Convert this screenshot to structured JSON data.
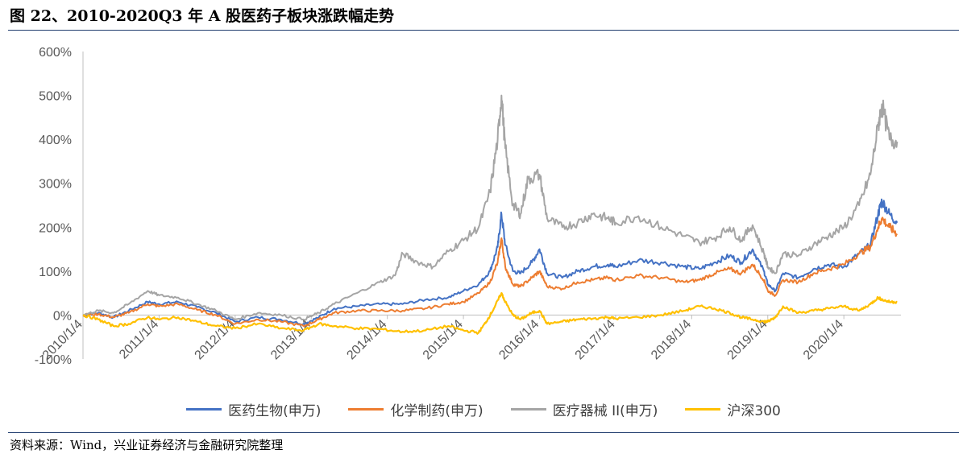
{
  "title": "图 22、2010-2020Q3 年 A 股医药子板块涨跌幅走势",
  "source": "资料来源：Wind，兴业证券经济与金融研究院整理",
  "chart_data": {
    "type": "line",
    "y_ticks": [
      "600%",
      "500%",
      "400%",
      "300%",
      "200%",
      "100%",
      "0%",
      "-100%"
    ],
    "ylim": [
      -100,
      600
    ],
    "y_unit": "%",
    "x_ticks": [
      "2010/1/4",
      "2011/1/4",
      "2012/1/4",
      "2013/1/4",
      "2014/1/4",
      "2015/1/4",
      "2016/1/4",
      "2017/1/4",
      "2018/1/4",
      "2019/1/4",
      "2020/1/4"
    ],
    "x_tick_years": [
      2010.0,
      2011.0,
      2012.0,
      2013.0,
      2014.0,
      2015.0,
      2016.0,
      2017.0,
      2018.0,
      2019.0,
      2020.0
    ],
    "xlim": [
      2010.0,
      2020.75
    ],
    "grid": false,
    "legend_position": "bottom",
    "series": [
      {
        "name": "医药生物(申万)",
        "color": "#4472c4",
        "points": [
          [
            2010.0,
            0
          ],
          [
            2010.2,
            5
          ],
          [
            2010.4,
            -5
          ],
          [
            2010.6,
            10
          ],
          [
            2010.85,
            30
          ],
          [
            2011.0,
            25
          ],
          [
            2011.25,
            30
          ],
          [
            2011.5,
            18
          ],
          [
            2011.75,
            5
          ],
          [
            2012.0,
            -15
          ],
          [
            2012.3,
            -5
          ],
          [
            2012.6,
            -10
          ],
          [
            2012.9,
            -20
          ],
          [
            2013.1,
            -5
          ],
          [
            2013.3,
            15
          ],
          [
            2013.6,
            20
          ],
          [
            2013.9,
            25
          ],
          [
            2014.2,
            25
          ],
          [
            2014.5,
            35
          ],
          [
            2014.8,
            40
          ],
          [
            2015.0,
            55
          ],
          [
            2015.2,
            70
          ],
          [
            2015.35,
            100
          ],
          [
            2015.45,
            155
          ],
          [
            2015.5,
            230
          ],
          [
            2015.55,
            160
          ],
          [
            2015.65,
            100
          ],
          [
            2015.75,
            95
          ],
          [
            2015.9,
            120
          ],
          [
            2016.0,
            150
          ],
          [
            2016.1,
            95
          ],
          [
            2016.3,
            85
          ],
          [
            2016.5,
            100
          ],
          [
            2016.7,
            110
          ],
          [
            2016.9,
            115
          ],
          [
            2017.0,
            110
          ],
          [
            2017.3,
            125
          ],
          [
            2017.6,
            120
          ],
          [
            2017.9,
            110
          ],
          [
            2018.1,
            105
          ],
          [
            2018.3,
            120
          ],
          [
            2018.5,
            135
          ],
          [
            2018.65,
            120
          ],
          [
            2018.8,
            150
          ],
          [
            2018.95,
            100
          ],
          [
            2019.0,
            70
          ],
          [
            2019.1,
            55
          ],
          [
            2019.2,
            95
          ],
          [
            2019.4,
            85
          ],
          [
            2019.6,
            105
          ],
          [
            2019.8,
            115
          ],
          [
            2020.0,
            110
          ],
          [
            2020.2,
            140
          ],
          [
            2020.35,
            160
          ],
          [
            2020.45,
            230
          ],
          [
            2020.5,
            260
          ],
          [
            2020.6,
            230
          ],
          [
            2020.7,
            210
          ]
        ]
      },
      {
        "name": "化学制药(申万)",
        "color": "#ed7d31",
        "points": [
          [
            2010.0,
            0
          ],
          [
            2010.2,
            2
          ],
          [
            2010.4,
            -5
          ],
          [
            2010.6,
            5
          ],
          [
            2010.85,
            25
          ],
          [
            2011.0,
            20
          ],
          [
            2011.25,
            25
          ],
          [
            2011.5,
            12
          ],
          [
            2011.75,
            0
          ],
          [
            2012.0,
            -20
          ],
          [
            2012.3,
            -10
          ],
          [
            2012.6,
            -15
          ],
          [
            2012.9,
            -25
          ],
          [
            2013.1,
            -10
          ],
          [
            2013.3,
            5
          ],
          [
            2013.6,
            10
          ],
          [
            2013.9,
            10
          ],
          [
            2014.2,
            10
          ],
          [
            2014.5,
            15
          ],
          [
            2014.8,
            25
          ],
          [
            2015.0,
            30
          ],
          [
            2015.2,
            50
          ],
          [
            2015.35,
            75
          ],
          [
            2015.45,
            120
          ],
          [
            2015.5,
            175
          ],
          [
            2015.55,
            110
          ],
          [
            2015.65,
            70
          ],
          [
            2015.75,
            65
          ],
          [
            2015.9,
            85
          ],
          [
            2016.0,
            100
          ],
          [
            2016.1,
            65
          ],
          [
            2016.3,
            60
          ],
          [
            2016.5,
            75
          ],
          [
            2016.7,
            80
          ],
          [
            2016.9,
            85
          ],
          [
            2017.0,
            80
          ],
          [
            2017.3,
            90
          ],
          [
            2017.6,
            85
          ],
          [
            2017.9,
            75
          ],
          [
            2018.1,
            80
          ],
          [
            2018.3,
            95
          ],
          [
            2018.5,
            105
          ],
          [
            2018.65,
            95
          ],
          [
            2018.8,
            115
          ],
          [
            2018.95,
            80
          ],
          [
            2019.0,
            55
          ],
          [
            2019.1,
            45
          ],
          [
            2019.2,
            80
          ],
          [
            2019.4,
            75
          ],
          [
            2019.6,
            95
          ],
          [
            2019.8,
            105
          ],
          [
            2020.0,
            115
          ],
          [
            2020.2,
            140
          ],
          [
            2020.35,
            155
          ],
          [
            2020.45,
            200
          ],
          [
            2020.5,
            220
          ],
          [
            2020.6,
            200
          ],
          [
            2020.7,
            185
          ]
        ]
      },
      {
        "name": "医疗器械 II(申万)",
        "color": "#a5a5a5",
        "points": [
          [
            2010.0,
            0
          ],
          [
            2010.2,
            10
          ],
          [
            2010.4,
            5
          ],
          [
            2010.6,
            25
          ],
          [
            2010.85,
            55
          ],
          [
            2011.0,
            45
          ],
          [
            2011.25,
            40
          ],
          [
            2011.5,
            25
          ],
          [
            2011.75,
            10
          ],
          [
            2012.0,
            -10
          ],
          [
            2012.3,
            5
          ],
          [
            2012.6,
            0
          ],
          [
            2012.9,
            -10
          ],
          [
            2013.1,
            5
          ],
          [
            2013.3,
            25
          ],
          [
            2013.6,
            50
          ],
          [
            2013.9,
            75
          ],
          [
            2014.1,
            90
          ],
          [
            2014.2,
            140
          ],
          [
            2014.4,
            120
          ],
          [
            2014.6,
            110
          ],
          [
            2014.8,
            145
          ],
          [
            2015.0,
            170
          ],
          [
            2015.2,
            200
          ],
          [
            2015.35,
            280
          ],
          [
            2015.45,
            400
          ],
          [
            2015.5,
            500
          ],
          [
            2015.55,
            380
          ],
          [
            2015.65,
            250
          ],
          [
            2015.75,
            230
          ],
          [
            2015.85,
            310
          ],
          [
            2016.0,
            320
          ],
          [
            2016.1,
            220
          ],
          [
            2016.3,
            200
          ],
          [
            2016.5,
            210
          ],
          [
            2016.7,
            230
          ],
          [
            2016.9,
            220
          ],
          [
            2017.0,
            210
          ],
          [
            2017.3,
            225
          ],
          [
            2017.6,
            200
          ],
          [
            2017.9,
            180
          ],
          [
            2018.1,
            165
          ],
          [
            2018.3,
            175
          ],
          [
            2018.5,
            200
          ],
          [
            2018.65,
            170
          ],
          [
            2018.8,
            205
          ],
          [
            2018.95,
            140
          ],
          [
            2019.0,
            110
          ],
          [
            2019.1,
            95
          ],
          [
            2019.2,
            140
          ],
          [
            2019.4,
            135
          ],
          [
            2019.6,
            160
          ],
          [
            2019.8,
            180
          ],
          [
            2020.0,
            200
          ],
          [
            2020.2,
            250
          ],
          [
            2020.35,
            320
          ],
          [
            2020.45,
            430
          ],
          [
            2020.5,
            480
          ],
          [
            2020.6,
            400
          ],
          [
            2020.7,
            395
          ]
        ]
      },
      {
        "name": "沪深300",
        "color": "#ffc000",
        "points": [
          [
            2010.0,
            0
          ],
          [
            2010.2,
            -10
          ],
          [
            2010.4,
            -25
          ],
          [
            2010.6,
            -20
          ],
          [
            2010.85,
            -5
          ],
          [
            2011.0,
            -10
          ],
          [
            2011.25,
            -5
          ],
          [
            2011.5,
            -15
          ],
          [
            2011.75,
            -25
          ],
          [
            2012.0,
            -30
          ],
          [
            2012.3,
            -20
          ],
          [
            2012.6,
            -30
          ],
          [
            2012.9,
            -35
          ],
          [
            2013.1,
            -20
          ],
          [
            2013.3,
            -25
          ],
          [
            2013.6,
            -30
          ],
          [
            2013.9,
            -32
          ],
          [
            2014.2,
            -38
          ],
          [
            2014.5,
            -35
          ],
          [
            2014.8,
            -25
          ],
          [
            2015.0,
            -35
          ],
          [
            2015.2,
            -40
          ],
          [
            2015.3,
            -15
          ],
          [
            2015.4,
            15
          ],
          [
            2015.5,
            50
          ],
          [
            2015.55,
            30
          ],
          [
            2015.65,
            0
          ],
          [
            2015.75,
            -10
          ],
          [
            2015.9,
            5
          ],
          [
            2016.0,
            10
          ],
          [
            2016.1,
            -20
          ],
          [
            2016.3,
            -15
          ],
          [
            2016.5,
            -10
          ],
          [
            2016.7,
            -8
          ],
          [
            2016.9,
            -5
          ],
          [
            2017.0,
            -8
          ],
          [
            2017.3,
            -5
          ],
          [
            2017.6,
            0
          ],
          [
            2017.9,
            10
          ],
          [
            2018.1,
            20
          ],
          [
            2018.3,
            15
          ],
          [
            2018.5,
            5
          ],
          [
            2018.65,
            -5
          ],
          [
            2018.8,
            -10
          ],
          [
            2018.95,
            -15
          ],
          [
            2019.0,
            -15
          ],
          [
            2019.1,
            -5
          ],
          [
            2019.2,
            20
          ],
          [
            2019.4,
            5
          ],
          [
            2019.6,
            10
          ],
          [
            2019.8,
            15
          ],
          [
            2020.0,
            20
          ],
          [
            2020.2,
            10
          ],
          [
            2020.35,
            25
          ],
          [
            2020.45,
            40
          ],
          [
            2020.5,
            35
          ],
          [
            2020.6,
            30
          ],
          [
            2020.7,
            30
          ]
        ]
      }
    ]
  }
}
